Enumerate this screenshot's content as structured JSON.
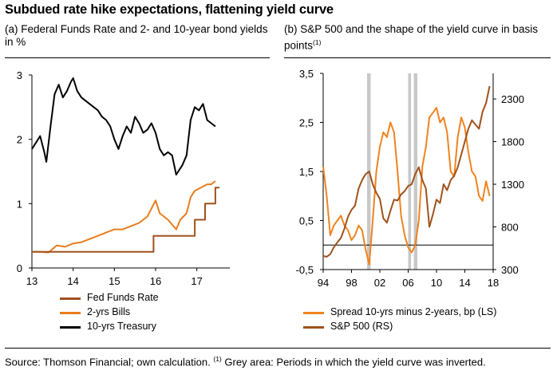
{
  "title": "Subdued rate hike expectations, flattening yield curve",
  "colors": {
    "fed": "#a0521c",
    "bills": "#e87d1e",
    "treasury": "#000000",
    "spread": "#f0831e",
    "sp500": "#a0521c",
    "grey_band": "#c8c8c8"
  },
  "chart_data": [
    {
      "id": "panel-a",
      "type": "line",
      "subtitle": "(a) Federal Funds Rate and 2- and 10-year bond yields in %",
      "x_ticks": [
        "13",
        "14",
        "15",
        "16",
        "17"
      ],
      "xlim": [
        2013.0,
        2017.8
      ],
      "y_ticks": [
        "0",
        "1",
        "2",
        "3"
      ],
      "ylim": [
        0,
        3
      ],
      "grid": false,
      "legend": [
        "Fed Funds Rate",
        "2-yrs Bills",
        "10-yrs Treasury"
      ],
      "series": [
        {
          "name": "10-yrs Treasury",
          "x": [
            2013.0,
            2013.1,
            2013.2,
            2013.3,
            2013.35,
            2013.45,
            2013.55,
            2013.65,
            2013.75,
            2013.85,
            2013.95,
            2014.0,
            2014.1,
            2014.2,
            2014.3,
            2014.4,
            2014.5,
            2014.6,
            2014.7,
            2014.8,
            2014.9,
            2015.0,
            2015.1,
            2015.2,
            2015.3,
            2015.4,
            2015.5,
            2015.6,
            2015.7,
            2015.8,
            2015.9,
            2016.0,
            2016.1,
            2016.2,
            2016.3,
            2016.4,
            2016.5,
            2016.55,
            2016.65,
            2016.75,
            2016.85,
            2016.95,
            2017.05,
            2017.15,
            2017.25,
            2017.35,
            2017.45
          ],
          "values": [
            1.85,
            1.95,
            2.05,
            1.8,
            1.65,
            2.2,
            2.7,
            2.85,
            2.65,
            2.75,
            2.9,
            2.95,
            2.75,
            2.65,
            2.6,
            2.55,
            2.5,
            2.45,
            2.35,
            2.3,
            2.2,
            2.0,
            1.85,
            2.05,
            2.2,
            2.1,
            2.35,
            2.25,
            2.1,
            2.15,
            2.25,
            2.1,
            1.85,
            1.75,
            1.8,
            1.75,
            1.45,
            1.5,
            1.6,
            1.75,
            2.3,
            2.5,
            2.45,
            2.55,
            2.3,
            2.25,
            2.2
          ]
        },
        {
          "name": "2-yrs Bills",
          "x": [
            2013.0,
            2013.2,
            2013.4,
            2013.6,
            2013.8,
            2014.0,
            2014.2,
            2014.4,
            2014.6,
            2014.8,
            2015.0,
            2015.2,
            2015.4,
            2015.6,
            2015.8,
            2016.0,
            2016.1,
            2016.3,
            2016.5,
            2016.6,
            2016.75,
            2016.85,
            2016.95,
            2017.1,
            2017.25,
            2017.35,
            2017.45
          ],
          "values": [
            0.25,
            0.25,
            0.24,
            0.35,
            0.33,
            0.38,
            0.4,
            0.45,
            0.5,
            0.55,
            0.6,
            0.6,
            0.65,
            0.7,
            0.8,
            1.05,
            0.85,
            0.75,
            0.6,
            0.75,
            0.85,
            1.1,
            1.2,
            1.25,
            1.3,
            1.3,
            1.35
          ]
        },
        {
          "name": "Fed Funds Rate",
          "x": [
            2013.0,
            2015.95,
            2015.95,
            2016.95,
            2016.95,
            2017.2,
            2017.2,
            2017.45,
            2017.45,
            2017.55
          ],
          "values": [
            0.25,
            0.25,
            0.5,
            0.5,
            0.75,
            0.75,
            1.0,
            1.0,
            1.25,
            1.25
          ]
        }
      ]
    },
    {
      "id": "panel-b",
      "type": "line",
      "subtitle": "(b) S&P 500 and the shape of the yield curve in basis points",
      "subtitle_note": "(1)",
      "x_ticks": [
        "94",
        "98",
        "02",
        "06",
        "10",
        "14",
        "18"
      ],
      "xlim": [
        1994,
        2018
      ],
      "y_ticks_left": [
        "-0,5",
        "0,5",
        "1,5",
        "2,5",
        "3,5"
      ],
      "ylim_left": [
        -0.5,
        3.5
      ],
      "y_ticks_right": [
        "300",
        "800",
        "1300",
        "1800",
        "2300"
      ],
      "ylim_right": [
        300,
        2600
      ],
      "zero_line_left": 0,
      "grey_areas": [
        [
          2000.2,
          2000.7
        ],
        [
          2006.0,
          2006.4
        ],
        [
          2006.8,
          2007.3
        ]
      ],
      "legend": [
        "Spread 10-yrs minus 2-years, bp (LS)",
        "S&P 500 (RS)"
      ],
      "series": [
        {
          "name": "Spread 10-yrs minus 2-years, bp (LS)",
          "axis": "left",
          "x": [
            1994.0,
            1994.5,
            1995.0,
            1995.5,
            1996.0,
            1996.5,
            1997.0,
            1997.5,
            1998.0,
            1998.5,
            1999.0,
            1999.5,
            2000.0,
            2000.5,
            2001.0,
            2001.5,
            2002.0,
            2002.5,
            2003.0,
            2003.5,
            2004.0,
            2004.5,
            2005.0,
            2005.5,
            2006.0,
            2006.5,
            2007.0,
            2007.5,
            2008.0,
            2008.5,
            2009.0,
            2009.5,
            2010.0,
            2010.5,
            2011.0,
            2011.5,
            2012.0,
            2012.5,
            2013.0,
            2013.5,
            2014.0,
            2014.5,
            2015.0,
            2015.5,
            2016.0,
            2016.5,
            2017.0,
            2017.5
          ],
          "values": [
            1.6,
            1.0,
            0.2,
            0.4,
            0.5,
            0.6,
            0.4,
            0.3,
            0.1,
            0.2,
            0.4,
            0.3,
            -0.1,
            -0.4,
            0.5,
            1.5,
            2.0,
            2.3,
            2.2,
            2.5,
            2.3,
            1.5,
            0.6,
            0.2,
            -0.05,
            -0.15,
            0.0,
            0.5,
            1.6,
            2.0,
            2.6,
            2.7,
            2.8,
            2.5,
            2.6,
            2.3,
            1.5,
            1.4,
            2.2,
            2.6,
            2.4,
            1.9,
            1.5,
            1.4,
            1.0,
            0.9,
            1.3,
            1.0
          ]
        },
        {
          "name": "S&P 500 (RS)",
          "axis": "right",
          "x": [
            1994.0,
            1994.5,
            1995.0,
            1995.5,
            1996.0,
            1996.5,
            1997.0,
            1997.5,
            1998.0,
            1998.5,
            1999.0,
            1999.5,
            2000.0,
            2000.5,
            2001.0,
            2001.5,
            2002.0,
            2002.5,
            2003.0,
            2003.5,
            2004.0,
            2004.5,
            2005.0,
            2005.5,
            2006.0,
            2006.5,
            2007.0,
            2007.5,
            2008.0,
            2008.5,
            2009.0,
            2009.5,
            2010.0,
            2010.5,
            2011.0,
            2011.5,
            2012.0,
            2012.5,
            2013.0,
            2013.5,
            2014.0,
            2014.5,
            2015.0,
            2015.5,
            2016.0,
            2016.5,
            2017.0,
            2017.5
          ],
          "values": [
            460,
            450,
            480,
            560,
            620,
            670,
            780,
            920,
            1000,
            1050,
            1250,
            1350,
            1420,
            1450,
            1300,
            1200,
            1130,
            900,
            850,
            990,
            1120,
            1110,
            1180,
            1220,
            1280,
            1300,
            1420,
            1500,
            1350,
            1250,
            800,
            950,
            1120,
            1080,
            1300,
            1230,
            1350,
            1400,
            1500,
            1650,
            1800,
            1950,
            2050,
            2000,
            1950,
            2150,
            2250,
            2450
          ]
        }
      ]
    }
  ],
  "source": {
    "text": "Source: Thomson Financial; own calculation.",
    "note_marker": "(1)",
    "note": "Grey area: Periods in which the yield curve was inverted."
  }
}
